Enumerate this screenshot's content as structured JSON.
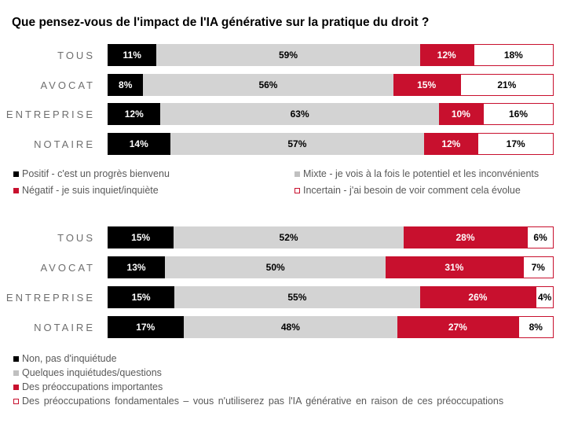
{
  "title": "Que pensez-vous de l'impact de l'IA générative sur la pratique du droit ?",
  "colors": {
    "black": "#000000",
    "gray": "#d3d3d3",
    "red": "#c8102e",
    "white": "#ffffff"
  },
  "chart_data": [
    {
      "type": "bar",
      "orientation": "horizontal",
      "stacked": "100%",
      "categories": [
        "TOUS",
        "AVOCAT",
        "ENTREPRISE",
        "NOTAIRE"
      ],
      "series": [
        {
          "name": "Positif - c'est un progrès bienvenu",
          "color": "#000000",
          "values": [
            11,
            8,
            12,
            14
          ]
        },
        {
          "name": "Mixte - je vois à la fois le potentiel et les inconvénients",
          "color": "#d3d3d3",
          "values": [
            59,
            56,
            63,
            57
          ]
        },
        {
          "name": "Négatif - je suis inquiet/inquiète",
          "color": "#c8102e",
          "values": [
            12,
            15,
            10,
            12
          ]
        },
        {
          "name": "Incertain - j'ai besoin de voir comment cela évolue",
          "color": "#ffffff",
          "values": [
            18,
            21,
            16,
            17
          ]
        }
      ],
      "labels": [
        [
          "11%",
          "59%",
          "12%",
          "18%"
        ],
        [
          "8%",
          "56%",
          "15%",
          "21%"
        ],
        [
          "12%",
          "63%",
          "10%",
          "16%"
        ],
        [
          "14%",
          "57%",
          "12%",
          "17%"
        ]
      ]
    },
    {
      "type": "bar",
      "orientation": "horizontal",
      "stacked": "100%",
      "categories": [
        "TOUS",
        "AVOCAT",
        "ENTREPRISE",
        "NOTAIRE"
      ],
      "series": [
        {
          "name": "Non, pas d'inquiétude",
          "color": "#000000",
          "values": [
            15,
            13,
            15,
            17
          ]
        },
        {
          "name": "Quelques inquiétudes/questions",
          "color": "#d3d3d3",
          "values": [
            52,
            50,
            55,
            48
          ]
        },
        {
          "name": "Des préoccupations importantes",
          "color": "#c8102e",
          "values": [
            28,
            31,
            26,
            27
          ]
        },
        {
          "name": "Des préoccupations fondamentales – vous n'utiliserez pas l'IA générative en raison de ces préoccupations",
          "color": "#ffffff",
          "values": [
            6,
            7,
            4,
            8
          ]
        }
      ],
      "labels": [
        [
          "15%",
          "52%",
          "28%",
          "6%"
        ],
        [
          "13%",
          "50%",
          "31%",
          "7%"
        ],
        [
          "15%",
          "55%",
          "26%",
          "4%"
        ],
        [
          "17%",
          "48%",
          "27%",
          "8%"
        ]
      ]
    }
  ]
}
